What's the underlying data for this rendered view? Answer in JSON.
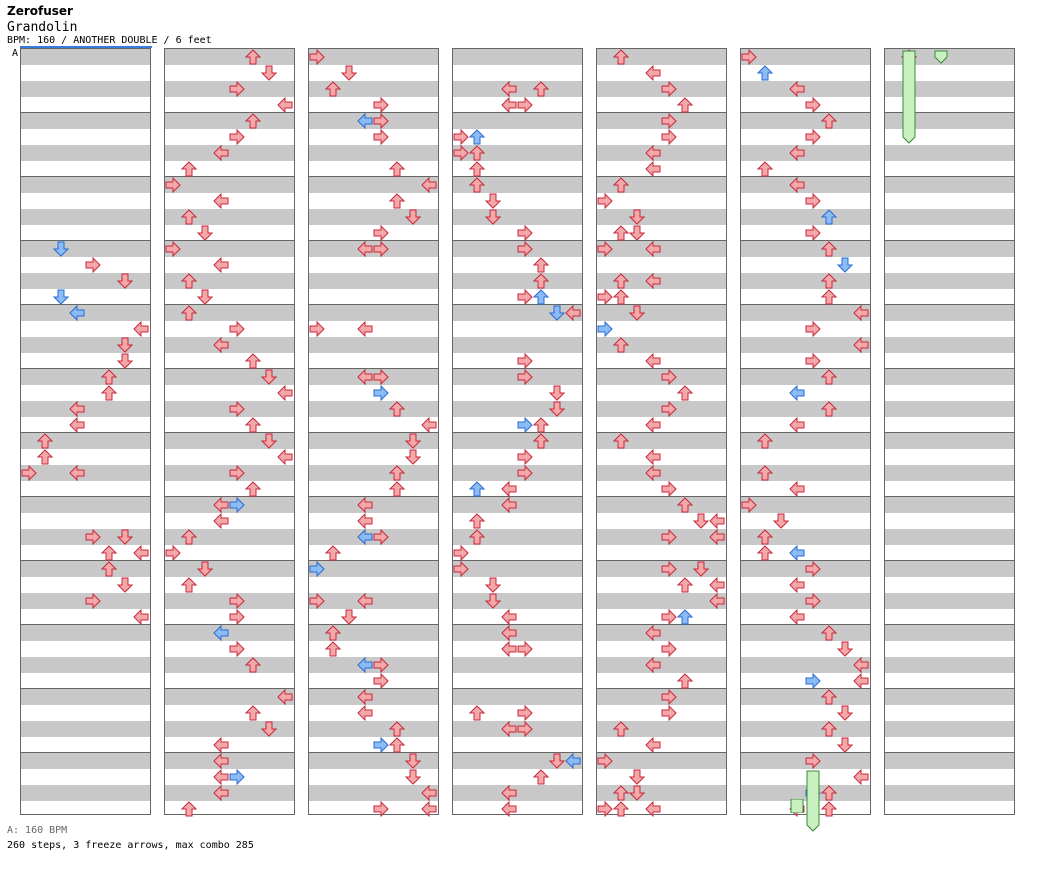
{
  "header": {
    "artist": "Zerofuser",
    "song": "Grandolin",
    "chart_info": "BPM: 160 / ANOTHER DOUBLE / 6 feet",
    "marker": "A"
  },
  "footer": {
    "bpm_line": "A: 160 BPM",
    "stats_line": "260 steps, 3 freeze arrows, max combo 285"
  },
  "colors": {
    "normal": "#f4a8a8",
    "normal_stroke": "#c8283c",
    "shock": "#8cbcf4",
    "shock_stroke": "#2a6ad0",
    "freeze": "#c8f0c0",
    "freeze_stroke": "#3a8a3a",
    "row_stripe": "#c8c8c8"
  },
  "notes": [
    [
      0,
      6,
      2,
      "s"
    ],
    [
      0,
      6.5,
      4,
      "n"
    ],
    [
      0,
      7,
      6,
      "n"
    ],
    [
      0,
      7.5,
      2,
      "s"
    ],
    [
      0,
      8,
      3,
      "s"
    ],
    [
      0,
      8.5,
      7,
      "n"
    ],
    [
      0,
      9,
      6,
      "n"
    ],
    [
      0,
      9.5,
      6,
      "n"
    ],
    [
      0,
      10,
      5,
      "n"
    ],
    [
      0,
      10.5,
      5,
      "n"
    ],
    [
      0,
      11,
      3,
      "n"
    ],
    [
      0,
      11.5,
      3,
      "n"
    ],
    [
      0,
      12,
      1,
      "n"
    ],
    [
      0,
      12.5,
      1,
      "n"
    ],
    [
      0,
      13,
      0,
      "n"
    ],
    [
      0,
      13,
      3,
      "n"
    ],
    [
      0,
      15,
      4,
      "n"
    ],
    [
      0,
      15,
      6,
      "n"
    ],
    [
      0,
      15.5,
      5,
      "n"
    ],
    [
      0,
      15.5,
      7,
      "n"
    ],
    [
      0,
      16,
      5,
      "n"
    ],
    [
      0,
      16.5,
      6,
      "n"
    ],
    [
      0,
      17,
      4,
      "n"
    ],
    [
      0,
      17.5,
      7,
      "n"
    ],
    [
      1,
      0,
      5,
      "n"
    ],
    [
      1,
      0.5,
      6,
      "n"
    ],
    [
      1,
      1,
      4,
      "n"
    ],
    [
      1,
      1.5,
      7,
      "n"
    ],
    [
      1,
      2,
      5,
      "n"
    ],
    [
      1,
      2.5,
      4,
      "n"
    ],
    [
      1,
      3,
      3,
      "n"
    ],
    [
      1,
      3.5,
      1,
      "n"
    ],
    [
      1,
      4,
      0,
      "n"
    ],
    [
      1,
      4.5,
      3,
      "n"
    ],
    [
      1,
      5,
      1,
      "n"
    ],
    [
      1,
      5.5,
      2,
      "n"
    ],
    [
      1,
      6,
      0,
      "n"
    ],
    [
      1,
      6.5,
      3,
      "n"
    ],
    [
      1,
      7,
      1,
      "n"
    ],
    [
      1,
      7.5,
      2,
      "n"
    ],
    [
      1,
      8,
      1,
      "n"
    ],
    [
      1,
      8.5,
      4,
      "n"
    ],
    [
      1,
      9,
      3,
      "n"
    ],
    [
      1,
      9.5,
      5,
      "n"
    ],
    [
      1,
      10,
      6,
      "n"
    ],
    [
      1,
      10.5,
      7,
      "n"
    ],
    [
      1,
      11,
      4,
      "n"
    ],
    [
      1,
      11.5,
      5,
      "n"
    ],
    [
      1,
      12,
      6,
      "n"
    ],
    [
      1,
      12.5,
      7,
      "n"
    ],
    [
      1,
      13,
      4,
      "n"
    ],
    [
      1,
      13.5,
      5,
      "n"
    ],
    [
      1,
      14,
      3,
      "n"
    ],
    [
      1,
      14,
      4,
      "s"
    ],
    [
      1,
      14.5,
      3,
      "n"
    ],
    [
      1,
      15,
      1,
      "n"
    ],
    [
      1,
      15.5,
      0,
      "n"
    ],
    [
      1,
      16,
      2,
      "n"
    ],
    [
      1,
      16.5,
      1,
      "n"
    ],
    [
      1,
      17,
      4,
      "n"
    ],
    [
      1,
      17.5,
      4,
      "n"
    ],
    [
      1,
      18,
      3,
      "s"
    ],
    [
      1,
      18.5,
      4,
      "n"
    ],
    [
      1,
      19,
      5,
      "n"
    ],
    [
      1,
      20,
      7,
      "n"
    ],
    [
      1,
      20.5,
      5,
      "n"
    ],
    [
      1,
      21,
      6,
      "n"
    ],
    [
      1,
      21.5,
      3,
      "n"
    ],
    [
      1,
      22,
      3,
      "n"
    ],
    [
      1,
      22.5,
      3,
      "n"
    ],
    [
      1,
      22.5,
      4,
      "s"
    ],
    [
      1,
      23,
      3,
      "n"
    ],
    [
      1,
      23.5,
      1,
      "n"
    ],
    [
      2,
      0,
      0,
      "n"
    ],
    [
      2,
      0.5,
      2,
      "n"
    ],
    [
      2,
      1,
      1,
      "n"
    ],
    [
      2,
      1.5,
      4,
      "n"
    ],
    [
      2,
      2,
      3,
      "s"
    ],
    [
      2,
      2,
      4,
      "n"
    ],
    [
      2,
      2.5,
      4,
      "n"
    ],
    [
      2,
      3.5,
      5,
      "n"
    ],
    [
      2,
      4,
      7,
      "n"
    ],
    [
      2,
      4.5,
      5,
      "n"
    ],
    [
      2,
      5,
      6,
      "n"
    ],
    [
      2,
      5.5,
      4,
      "n"
    ],
    [
      2,
      6,
      3,
      "n"
    ],
    [
      2,
      6,
      4,
      "n"
    ],
    [
      2,
      8.5,
      0,
      "n"
    ],
    [
      2,
      8.5,
      3,
      "n"
    ],
    [
      2,
      10,
      3,
      "n"
    ],
    [
      2,
      10,
      4,
      "n"
    ],
    [
      2,
      10.5,
      4,
      "s"
    ],
    [
      2,
      11,
      5,
      "n"
    ],
    [
      2,
      11.5,
      7,
      "n"
    ],
    [
      2,
      12,
      6,
      "n"
    ],
    [
      2,
      12.5,
      6,
      "n"
    ],
    [
      2,
      13,
      5,
      "n"
    ],
    [
      2,
      13.5,
      5,
      "n"
    ],
    [
      2,
      14,
      3,
      "n"
    ],
    [
      2,
      14.5,
      3,
      "n"
    ],
    [
      2,
      15,
      3,
      "s"
    ],
    [
      2,
      15,
      4,
      "n"
    ],
    [
      2,
      15.5,
      1,
      "n"
    ],
    [
      2,
      16,
      0,
      "s"
    ],
    [
      2,
      17,
      0,
      "n"
    ],
    [
      2,
      17,
      3,
      "n"
    ],
    [
      2,
      17.5,
      2,
      "n"
    ],
    [
      2,
      18,
      1,
      "n"
    ],
    [
      2,
      18.5,
      1,
      "n"
    ],
    [
      2,
      19,
      3,
      "s"
    ],
    [
      2,
      19,
      4,
      "n"
    ],
    [
      2,
      19.5,
      4,
      "n"
    ],
    [
      2,
      20,
      3,
      "n"
    ],
    [
      2,
      20.5,
      3,
      "n"
    ],
    [
      2,
      21,
      5,
      "n"
    ],
    [
      2,
      21.5,
      4,
      "s"
    ],
    [
      2,
      21.5,
      5,
      "n"
    ],
    [
      2,
      22,
      6,
      "n"
    ],
    [
      2,
      22.5,
      6,
      "n"
    ],
    [
      2,
      23,
      7,
      "n"
    ],
    [
      2,
      23.5,
      4,
      "n"
    ],
    [
      2,
      23.5,
      7,
      "n"
    ],
    [
      3,
      1,
      3,
      "n"
    ],
    [
      3,
      1,
      5,
      "n"
    ],
    [
      3,
      1.5,
      3,
      "n"
    ],
    [
      3,
      1.5,
      4,
      "n"
    ],
    [
      3,
      2.5,
      0,
      "n"
    ],
    [
      3,
      2.5,
      1,
      "s"
    ],
    [
      3,
      3,
      0,
      "n"
    ],
    [
      3,
      3,
      1,
      "n"
    ],
    [
      3,
      3.5,
      1,
      "n"
    ],
    [
      3,
      4,
      1,
      "n"
    ],
    [
      3,
      4.5,
      2,
      "n"
    ],
    [
      3,
      5,
      2,
      "n"
    ],
    [
      3,
      5.5,
      4,
      "n"
    ],
    [
      3,
      6,
      4,
      "n"
    ],
    [
      3,
      6.5,
      5,
      "n"
    ],
    [
      3,
      7,
      5,
      "n"
    ],
    [
      3,
      7.5,
      4,
      "n"
    ],
    [
      3,
      7.5,
      5,
      "s"
    ],
    [
      3,
      8,
      7,
      "n"
    ],
    [
      3,
      8,
      6,
      "s"
    ],
    [
      3,
      9.5,
      4,
      "n"
    ],
    [
      3,
      10,
      4,
      "n"
    ],
    [
      3,
      10.5,
      6,
      "n"
    ],
    [
      3,
      11,
      6,
      "n"
    ],
    [
      3,
      11.5,
      5,
      "n"
    ],
    [
      3,
      11.5,
      4,
      "s"
    ],
    [
      3,
      12,
      5,
      "n"
    ],
    [
      3,
      12.5,
      4,
      "n"
    ],
    [
      3,
      13,
      4,
      "n"
    ],
    [
      3,
      13.5,
      3,
      "n"
    ],
    [
      3,
      13.5,
      1,
      "s"
    ],
    [
      3,
      14,
      3,
      "n"
    ],
    [
      3,
      14.5,
      1,
      "n"
    ],
    [
      3,
      15,
      1,
      "n"
    ],
    [
      3,
      15.5,
      0,
      "n"
    ],
    [
      3,
      16,
      0,
      "n"
    ],
    [
      3,
      16.5,
      2,
      "n"
    ],
    [
      3,
      17,
      2,
      "n"
    ],
    [
      3,
      17.5,
      3,
      "n"
    ],
    [
      3,
      18,
      3,
      "n"
    ],
    [
      3,
      18.5,
      3,
      "n"
    ],
    [
      3,
      18.5,
      4,
      "n"
    ],
    [
      3,
      20.5,
      1,
      "n"
    ],
    [
      3,
      20.5,
      4,
      "n"
    ],
    [
      3,
      21,
      3,
      "n"
    ],
    [
      3,
      21,
      4,
      "n"
    ],
    [
      3,
      22,
      6,
      "n"
    ],
    [
      3,
      22,
      7,
      "s"
    ],
    [
      3,
      22.5,
      5,
      "n"
    ],
    [
      3,
      23,
      3,
      "n"
    ],
    [
      3,
      23.5,
      3,
      "n"
    ],
    [
      4,
      0,
      1,
      "n"
    ],
    [
      4,
      0.5,
      3,
      "n"
    ],
    [
      4,
      1,
      4,
      "n"
    ],
    [
      4,
      1.5,
      5,
      "n"
    ],
    [
      4,
      2,
      4,
      "n"
    ],
    [
      4,
      2.5,
      4,
      "n"
    ],
    [
      4,
      3,
      3,
      "n"
    ],
    [
      4,
      3.5,
      3,
      "n"
    ],
    [
      4,
      4,
      1,
      "n"
    ],
    [
      4,
      4.5,
      0,
      "n"
    ],
    [
      4,
      5,
      2,
      "n"
    ],
    [
      4,
      5.5,
      1,
      "n"
    ],
    [
      4,
      5.5,
      2,
      "n"
    ],
    [
      4,
      6,
      0,
      "n"
    ],
    [
      4,
      6,
      3,
      "n"
    ],
    [
      4,
      7,
      1,
      "n"
    ],
    [
      4,
      7,
      3,
      "n"
    ],
    [
      4,
      7.5,
      0,
      "n"
    ],
    [
      4,
      7.5,
      1,
      "n"
    ],
    [
      4,
      8,
      2,
      "n"
    ],
    [
      4,
      8.5,
      0,
      "s"
    ],
    [
      4,
      9,
      1,
      "n"
    ],
    [
      4,
      9.5,
      3,
      "n"
    ],
    [
      4,
      10,
      4,
      "n"
    ],
    [
      4,
      10.5,
      5,
      "n"
    ],
    [
      4,
      11,
      4,
      "n"
    ],
    [
      4,
      11.5,
      3,
      "n"
    ],
    [
      4,
      12,
      1,
      "n"
    ],
    [
      4,
      12.5,
      3,
      "n"
    ],
    [
      4,
      13,
      3,
      "n"
    ],
    [
      4,
      13.5,
      4,
      "n"
    ],
    [
      4,
      14,
      5,
      "n"
    ],
    [
      4,
      14.5,
      6,
      "n"
    ],
    [
      4,
      14.5,
      7,
      "n"
    ],
    [
      4,
      15,
      4,
      "n"
    ],
    [
      4,
      15,
      7,
      "n"
    ],
    [
      4,
      16,
      4,
      "n"
    ],
    [
      4,
      16,
      6,
      "n"
    ],
    [
      4,
      16.5,
      5,
      "n"
    ],
    [
      4,
      16.5,
      7,
      "n"
    ],
    [
      4,
      17,
      7,
      "n"
    ],
    [
      4,
      17.5,
      5,
      "s"
    ],
    [
      4,
      17.5,
      4,
      "n"
    ],
    [
      4,
      18,
      3,
      "n"
    ],
    [
      4,
      18.5,
      4,
      "n"
    ],
    [
      4,
      19,
      3,
      "n"
    ],
    [
      4,
      19.5,
      5,
      "n"
    ],
    [
      4,
      20,
      4,
      "n"
    ],
    [
      4,
      20.5,
      4,
      "n"
    ],
    [
      4,
      21,
      1,
      "n"
    ],
    [
      4,
      21.5,
      3,
      "n"
    ],
    [
      4,
      22,
      0,
      "n"
    ],
    [
      4,
      22.5,
      2,
      "n"
    ],
    [
      4,
      23,
      1,
      "n"
    ],
    [
      4,
      23,
      2,
      "n"
    ],
    [
      4,
      23.5,
      1,
      "n"
    ],
    [
      4,
      23.5,
      3,
      "n"
    ],
    [
      4,
      23.5,
      0,
      "n"
    ],
    [
      5,
      0,
      0,
      "n"
    ],
    [
      5,
      0.5,
      1,
      "s"
    ],
    [
      5,
      1,
      3,
      "n"
    ],
    [
      5,
      1.5,
      4,
      "n"
    ],
    [
      5,
      2,
      5,
      "n"
    ],
    [
      5,
      2.5,
      4,
      "n"
    ],
    [
      5,
      3,
      3,
      "n"
    ],
    [
      5,
      3.5,
      1,
      "n"
    ],
    [
      5,
      4,
      3,
      "n"
    ],
    [
      5,
      4.5,
      4,
      "n"
    ],
    [
      5,
      5,
      5,
      "s"
    ],
    [
      5,
      5.5,
      4,
      "n"
    ],
    [
      5,
      6,
      5,
      "n"
    ],
    [
      5,
      6.5,
      6,
      "s"
    ],
    [
      5,
      7,
      5,
      "n"
    ],
    [
      5,
      7.5,
      5,
      "n"
    ],
    [
      5,
      8,
      7,
      "n"
    ],
    [
      5,
      8.5,
      4,
      "n"
    ],
    [
      5,
      9,
      7,
      "n"
    ],
    [
      5,
      9.5,
      4,
      "n"
    ],
    [
      5,
      10,
      5,
      "n"
    ],
    [
      5,
      10.5,
      3,
      "s"
    ],
    [
      5,
      11,
      5,
      "n"
    ],
    [
      5,
      11.5,
      3,
      "n"
    ],
    [
      5,
      12,
      1,
      "n"
    ],
    [
      5,
      13,
      1,
      "n"
    ],
    [
      5,
      13.5,
      3,
      "n"
    ],
    [
      5,
      14,
      0,
      "n"
    ],
    [
      5,
      14.5,
      2,
      "n"
    ],
    [
      5,
      15,
      1,
      "n"
    ],
    [
      5,
      15.5,
      1,
      "n"
    ],
    [
      5,
      15.5,
      3,
      "s"
    ],
    [
      5,
      16,
      4,
      "n"
    ],
    [
      5,
      16.5,
      3,
      "n"
    ],
    [
      5,
      17,
      4,
      "n"
    ],
    [
      5,
      17.5,
      3,
      "n"
    ],
    [
      5,
      18,
      5,
      "n"
    ],
    [
      5,
      18.5,
      6,
      "n"
    ],
    [
      5,
      19,
      7,
      "n"
    ],
    [
      5,
      19.5,
      4,
      "s"
    ],
    [
      5,
      19.5,
      7,
      "n"
    ],
    [
      5,
      20,
      5,
      "n"
    ],
    [
      5,
      20.5,
      6,
      "n"
    ],
    [
      5,
      21,
      5,
      "n"
    ],
    [
      5,
      21.5,
      6,
      "n"
    ],
    [
      5,
      22,
      4,
      "n"
    ],
    [
      5,
      22.5,
      7,
      "n"
    ],
    [
      5,
      23,
      5,
      "n"
    ],
    [
      5,
      23,
      4,
      "s"
    ],
    [
      5,
      23.5,
      5,
      "n"
    ],
    [
      5,
      23.5,
      3,
      "n"
    ],
    [
      6,
      0,
      1,
      "n"
    ]
  ],
  "freezes": [
    [
      6,
      0,
      1,
      3
    ],
    [
      6,
      0,
      3,
      0.5
    ],
    [
      5,
      22.5,
      4,
      2
    ]
  ],
  "freeze_tails": [
    [
      5,
      23.5,
      3
    ]
  ]
}
